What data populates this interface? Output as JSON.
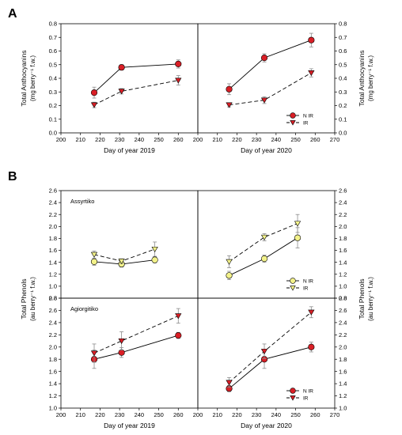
{
  "colors": {
    "nir_fill_A": "#d91f26",
    "nir_fill_B_top": "#f3f28a",
    "ir_fill_B_top": "#f3f28a",
    "ir_fill_red": "#d91f26",
    "line": "#000000",
    "error": "#8c8c8c"
  },
  "panel_letters": [
    "A",
    "B"
  ],
  "legend": {
    "nir": "N IR",
    "ir": "IR"
  },
  "chart_data": [
    {
      "id": "A-2019",
      "type": "line",
      "panel": "A",
      "xlabel": "Day of year 2019",
      "ylabel_left": "Total Anthocyanins",
      "ylabel_left_unit": "(mg berry⁻¹ f.w.)",
      "xlim": [
        200,
        270
      ],
      "ylim": [
        0,
        0.8
      ],
      "xticks": [
        "200",
        "210",
        "220",
        "230",
        "240",
        "250",
        "260"
      ],
      "yticks": [
        "0.0",
        "0.1",
        "0.2",
        "0.3",
        "0.4",
        "0.5",
        "0.6",
        "0.7",
        "0.8"
      ],
      "series": [
        {
          "name": "N IR",
          "x": [
            217,
            231,
            260
          ],
          "y": [
            0.295,
            0.48,
            0.505
          ],
          "err": [
            0.04,
            0.02,
            0.03
          ]
        },
        {
          "name": "IR",
          "x": [
            217,
            231,
            260
          ],
          "y": [
            0.205,
            0.305,
            0.385
          ],
          "err": [
            0.02,
            0.02,
            0.035
          ]
        }
      ]
    },
    {
      "id": "A-2020",
      "type": "line",
      "panel": "A",
      "xlabel": "Day of year 2020",
      "ylabel_right": "Total Anthocyanins",
      "ylabel_right_unit": "(mg berry⁻¹ f.w.)",
      "xlim": [
        200,
        270
      ],
      "ylim": [
        0,
        0.8
      ],
      "xticks": [
        "200",
        "210",
        "220",
        "230",
        "240",
        "250",
        "260",
        "270"
      ],
      "yticks": [
        "0.0",
        "0.1",
        "0.2",
        "0.3",
        "0.4",
        "0.5",
        "0.6",
        "0.7",
        "0.8"
      ],
      "legend_position": "bottom-right",
      "series": [
        {
          "name": "N IR",
          "x": [
            216,
            234,
            258
          ],
          "y": [
            0.32,
            0.55,
            0.68
          ],
          "err": [
            0.04,
            0.03,
            0.05
          ]
        },
        {
          "name": "IR",
          "x": [
            216,
            234,
            258
          ],
          "y": [
            0.205,
            0.24,
            0.44
          ],
          "err": [
            0.015,
            0.025,
            0.03
          ]
        }
      ]
    },
    {
      "id": "B-Assyrtiko-2019",
      "type": "line",
      "panel": "B",
      "annotation": "Assyrtiko",
      "ylim": [
        0.8,
        2.6
      ],
      "yticks": [
        "0.8",
        "1.0",
        "1.2",
        "1.4",
        "1.6",
        "1.8",
        "2.0",
        "2.2",
        "2.4",
        "2.6"
      ],
      "series": [
        {
          "name": "N IR",
          "x": [
            217,
            231,
            248
          ],
          "y": [
            1.41,
            1.37,
            1.44
          ],
          "err": [
            0.06,
            0.05,
            0.05
          ]
        },
        {
          "name": "IR",
          "x": [
            217,
            231,
            248
          ],
          "y": [
            1.53,
            1.42,
            1.62
          ],
          "err": [
            0.06,
            0.04,
            0.12
          ]
        }
      ]
    },
    {
      "id": "B-Assyrtiko-2020",
      "type": "line",
      "panel": "B",
      "ylim": [
        0.8,
        2.6
      ],
      "yticks": [
        "0.8",
        "1.0",
        "1.2",
        "1.4",
        "1.6",
        "1.8",
        "2.0",
        "2.2",
        "2.4",
        "2.6"
      ],
      "legend_position": "bottom-right",
      "series": [
        {
          "name": "N IR",
          "x": [
            216,
            234,
            251
          ],
          "y": [
            1.18,
            1.46,
            1.81
          ],
          "err": [
            0.07,
            0.06,
            0.17
          ]
        },
        {
          "name": "IR",
          "x": [
            216,
            234,
            251
          ],
          "y": [
            1.41,
            1.82,
            2.05
          ],
          "err": [
            0.1,
            0.06,
            0.15
          ]
        }
      ]
    },
    {
      "id": "B-Agiorgitiko-2019",
      "type": "line",
      "panel": "B",
      "annotation": "Agiorgitiko",
      "xlabel": "Day of year 2019",
      "xlim": [
        200,
        270
      ],
      "ylim": [
        1.0,
        2.8
      ],
      "xticks": [
        "200",
        "210",
        "220",
        "230",
        "240",
        "250",
        "260"
      ],
      "yticks": [
        "1.0",
        "1.2",
        "1.4",
        "1.6",
        "1.8",
        "2.0",
        "2.2",
        "2.4",
        "2.6",
        "2.8"
      ],
      "series": [
        {
          "name": "N IR",
          "x": [
            217,
            231,
            260
          ],
          "y": [
            1.8,
            1.91,
            2.19
          ],
          "err": [
            0.15,
            0.08,
            0.05
          ]
        },
        {
          "name": "IR",
          "x": [
            217,
            231,
            260
          ],
          "y": [
            1.9,
            2.1,
            2.51
          ],
          "err": [
            0.15,
            0.15,
            0.12
          ]
        }
      ]
    },
    {
      "id": "B-Agiorgitiko-2020",
      "type": "line",
      "panel": "B",
      "xlabel": "Day of year 2020",
      "xlim": [
        200,
        270
      ],
      "ylim": [
        1.0,
        2.8
      ],
      "xticks": [
        "200",
        "210",
        "220",
        "230",
        "240",
        "250",
        "260",
        "270"
      ],
      "yticks": [
        "1.0",
        "1.2",
        "1.4",
        "1.6",
        "1.8",
        "2.0",
        "2.2",
        "2.4",
        "2.6",
        "2.8"
      ],
      "legend_position": "bottom-right",
      "series": [
        {
          "name": "N IR",
          "x": [
            216,
            234,
            258
          ],
          "y": [
            1.32,
            1.8,
            2.0
          ],
          "err": [
            0.05,
            0.15,
            0.08
          ]
        },
        {
          "name": "IR",
          "x": [
            216,
            234,
            258
          ],
          "y": [
            1.42,
            1.93,
            2.57
          ],
          "err": [
            0.08,
            0.12,
            0.09
          ]
        }
      ]
    }
  ],
  "ylabel_B": "Total Phenols",
  "ylabel_B_unit": "(au berry⁻¹ f.w.)"
}
